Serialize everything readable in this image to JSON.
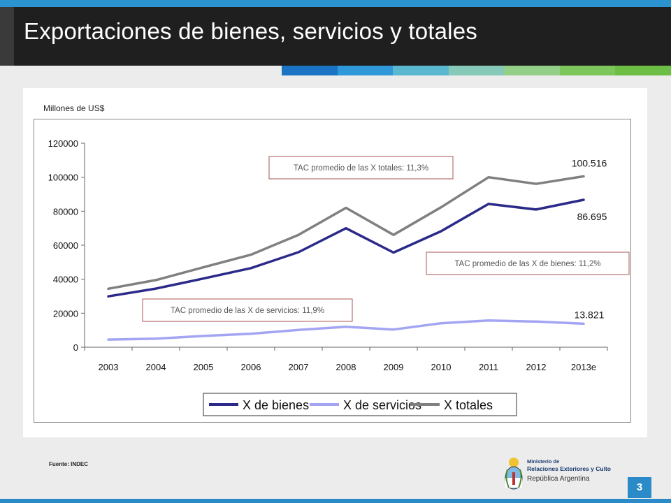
{
  "slide": {
    "title": "Exportaciones de bienes, servicios y totales",
    "units_label": "Millones de US$",
    "source": "Fuente: INDEC",
    "page_number": "3",
    "logo": {
      "line1": "Ministerio de",
      "line2": "Relaciones Exteriores y Culto",
      "line3": "República Argentina"
    },
    "stripe_colors": [
      "#1b73c4",
      "#2f98d8",
      "#59b8d0",
      "#86c9b8",
      "#93cf86",
      "#7cc65b",
      "#6dbe45"
    ]
  },
  "chart_data": {
    "type": "line",
    "categories": [
      "2003",
      "2004",
      "2005",
      "2006",
      "2007",
      "2008",
      "2009",
      "2010",
      "2011",
      "2012",
      "2013e"
    ],
    "ylim": [
      0,
      120000
    ],
    "yticks": [
      0,
      20000,
      40000,
      60000,
      80000,
      100000,
      120000
    ],
    "grid": false,
    "legend_position": "bottom",
    "series": [
      {
        "name": "X de bienes",
        "color": "#2b2a8a",
        "values": [
          29900,
          34500,
          40400,
          46500,
          55900,
          70000,
          55700,
          68200,
          84300,
          81000,
          86695
        ]
      },
      {
        "name": "X de servicios",
        "color": "#a3a5f3",
        "values": [
          4500,
          5000,
          6600,
          7900,
          10200,
          12000,
          10400,
          14100,
          15700,
          15100,
          13821
        ]
      },
      {
        "name": "X totales",
        "color": "#808080",
        "values": [
          34400,
          39500,
          47000,
          54400,
          66100,
          82000,
          66100,
          82300,
          100000,
          96100,
          100516
        ]
      }
    ],
    "data_labels": {
      "totales_last": "100.516",
      "bienes_last": "86.695",
      "servicios_last": "13.821"
    },
    "annotations": [
      "TAC promedio de las X totales: 11,3%",
      "TAC promedio de las X de bienes: 11,2%",
      "TAC promedio de las X de servicios: 11,9%"
    ]
  }
}
